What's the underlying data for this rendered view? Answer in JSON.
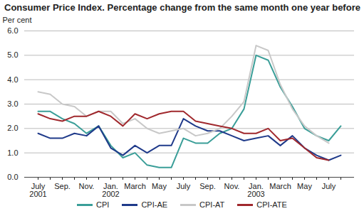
{
  "chart_data": {
    "type": "line",
    "title": "Consumer Price Index. Percentage change from the same month one year before",
    "y_label": "Per cent",
    "categories": [
      "July 2001",
      null,
      "Sep.",
      null,
      "Nov.",
      null,
      "Jan. 2002",
      null,
      "March",
      null,
      "May",
      null,
      "July",
      null,
      "Sep.",
      null,
      "Nov.",
      null,
      "Jan. 2003",
      null,
      "March",
      null,
      "May",
      null,
      "July",
      null
    ],
    "series": [
      {
        "name": "CPI",
        "color": "#3a9e98",
        "values": [
          2.7,
          2.7,
          2.4,
          2.2,
          1.8,
          2.1,
          1.3,
          0.8,
          1.0,
          0.5,
          0.4,
          0.4,
          1.6,
          1.4,
          1.4,
          1.8,
          2.0,
          2.8,
          5.0,
          4.8,
          3.7,
          2.9,
          2.0,
          1.7,
          1.5,
          2.1
        ]
      },
      {
        "name": "CPI-AE",
        "color": "#1f3a8a",
        "values": [
          1.8,
          1.6,
          1.6,
          1.8,
          1.7,
          2.1,
          1.2,
          0.9,
          1.3,
          1.0,
          1.3,
          1.3,
          2.4,
          2.1,
          1.9,
          1.9,
          1.7,
          1.5,
          1.6,
          1.7,
          1.3,
          1.7,
          1.2,
          0.9,
          0.7,
          0.9
        ]
      },
      {
        "name": "CPI-AT",
        "color": "#c8c8c8",
        "values": [
          3.5,
          3.4,
          3.0,
          2.9,
          2.5,
          2.7,
          2.7,
          2.2,
          2.4,
          2.0,
          1.8,
          1.9,
          2.0,
          1.7,
          1.8,
          2.0,
          2.5,
          3.1,
          5.4,
          5.2,
          3.8,
          2.8,
          2.1,
          1.7,
          1.4,
          null
        ]
      },
      {
        "name": "CPI-ATE",
        "color": "#a0282d",
        "values": [
          2.6,
          2.4,
          2.3,
          2.5,
          2.5,
          2.7,
          2.5,
          2.1,
          2.6,
          2.4,
          2.6,
          2.7,
          2.7,
          2.3,
          2.2,
          2.1,
          2.0,
          1.8,
          1.8,
          2.0,
          1.5,
          1.6,
          1.2,
          0.8,
          0.7,
          null
        ]
      }
    ],
    "ylim": [
      0,
      6
    ],
    "yticks": [
      0,
      1,
      2,
      3,
      4,
      5,
      6
    ],
    "grid": true,
    "legend": "bottom"
  }
}
